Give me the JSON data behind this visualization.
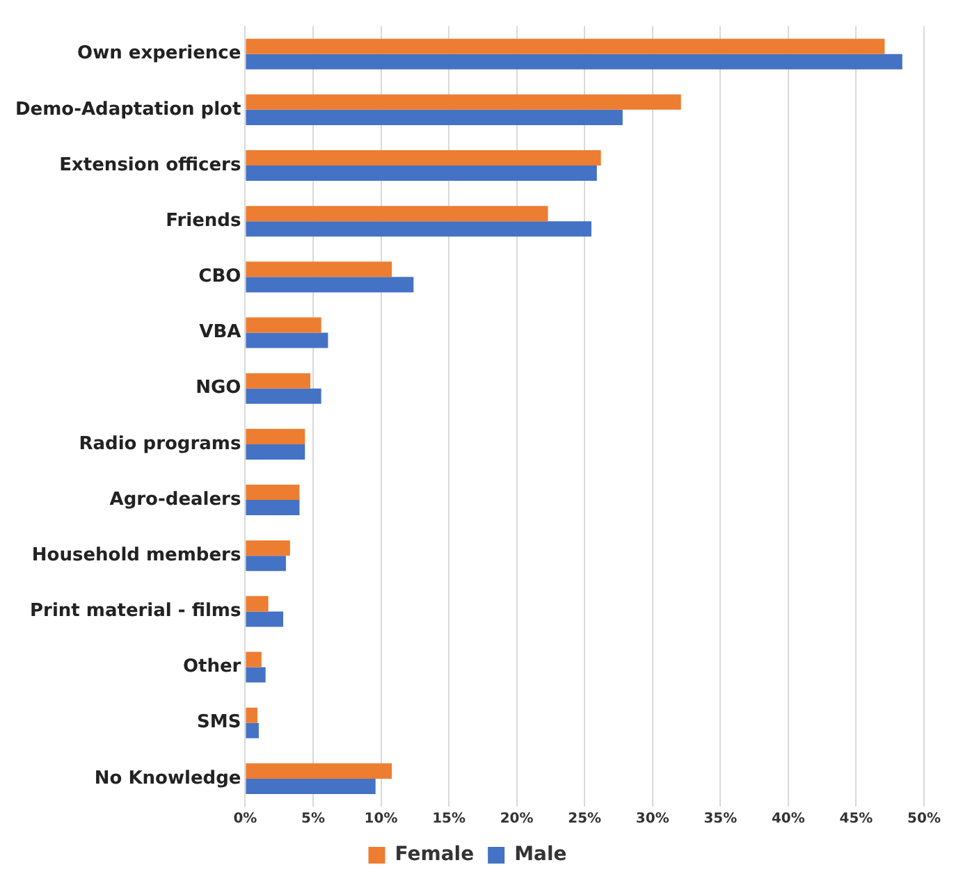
{
  "chart_data": {
    "type": "bar",
    "orientation": "horizontal",
    "categories": [
      "Own experience",
      "Demo-Adaptation plot",
      "Extension officers",
      "Friends",
      "CBO",
      "VBA",
      "NGO",
      "Radio programs",
      "Agro-dealers",
      "Household members",
      "Print material - films",
      "Other",
      "SMS",
      "No Knowledge"
    ],
    "series": [
      {
        "name": "Female",
        "color": "#ed7d31",
        "values": [
          47.1,
          32.1,
          26.2,
          22.3,
          10.8,
          5.6,
          4.8,
          4.4,
          4.0,
          3.3,
          1.7,
          1.2,
          0.9,
          10.8
        ]
      },
      {
        "name": "Male",
        "color": "#4472c4",
        "values": [
          48.4,
          27.8,
          25.9,
          25.5,
          12.4,
          6.1,
          5.6,
          4.4,
          4.0,
          3.0,
          2.8,
          1.5,
          1.0,
          9.6
        ]
      }
    ],
    "xlim": [
      0,
      50
    ],
    "xticks": [
      {
        "value": 0,
        "label": "0%"
      },
      {
        "value": 5,
        "label": "5%"
      },
      {
        "value": 10,
        "label": "10%"
      },
      {
        "value": 15,
        "label": "15%"
      },
      {
        "value": 20,
        "label": "20%"
      },
      {
        "value": 25,
        "label": "25%"
      },
      {
        "value": 30,
        "label": "30%"
      },
      {
        "value": 35,
        "label": "35%"
      },
      {
        "value": 40,
        "label": "40%"
      },
      {
        "value": 45,
        "label": "45%"
      },
      {
        "value": 50,
        "label": "50%"
      }
    ],
    "grid": "x",
    "legend": "bottom"
  }
}
